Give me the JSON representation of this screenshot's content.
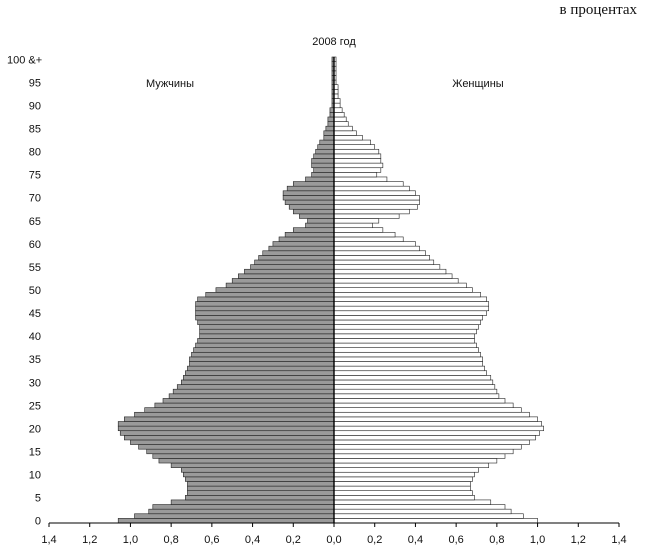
{
  "unit_note": "в процентах",
  "chart_data": {
    "type": "bar",
    "orientation": "horizontal",
    "layout": "population-pyramid",
    "title": "2008 год",
    "xlabel": "",
    "ylabel": "",
    "xlim": [
      -1.4,
      1.4
    ],
    "ylim": [
      0,
      100
    ],
    "x_ticks": [
      "1,4",
      "1,2",
      "1,0",
      "0,8",
      "0,6",
      "0,4",
      "0,2",
      "0,0",
      "0,2",
      "0,4",
      "0,6",
      "0,8",
      "1,0",
      "1,2",
      "1,4"
    ],
    "y_ticks": [
      "0",
      "5",
      "10",
      "15",
      "20",
      "25",
      "30",
      "35",
      "40",
      "45",
      "50",
      "55",
      "60",
      "65",
      "70",
      "75",
      "80",
      "85",
      "90",
      "95",
      "100 &+"
    ],
    "grid": false,
    "legend": "none",
    "colors": {
      "male": "#9a9a9a",
      "female": "#ffffff",
      "outline": "#222222"
    },
    "ages": [
      0,
      1,
      2,
      3,
      4,
      5,
      6,
      7,
      8,
      9,
      10,
      11,
      12,
      13,
      14,
      15,
      16,
      17,
      18,
      19,
      20,
      21,
      22,
      23,
      24,
      25,
      26,
      27,
      28,
      29,
      30,
      31,
      32,
      33,
      34,
      35,
      36,
      37,
      38,
      39,
      40,
      41,
      42,
      43,
      44,
      45,
      46,
      47,
      48,
      49,
      50,
      51,
      52,
      53,
      54,
      55,
      56,
      57,
      58,
      59,
      60,
      61,
      62,
      63,
      64,
      65,
      66,
      67,
      68,
      69,
      70,
      71,
      72,
      73,
      74,
      75,
      76,
      77,
      78,
      79,
      80,
      81,
      82,
      83,
      84,
      85,
      86,
      87,
      88,
      89,
      90,
      91,
      92,
      93,
      94,
      95,
      96,
      97,
      98,
      99,
      100
    ],
    "series": [
      {
        "name": "Мужчины",
        "values": [
          1.06,
          0.98,
          0.91,
          0.89,
          0.8,
          0.73,
          0.72,
          0.72,
          0.72,
          0.73,
          0.74,
          0.75,
          0.8,
          0.86,
          0.89,
          0.92,
          0.96,
          1.0,
          1.03,
          1.05,
          1.06,
          1.06,
          1.03,
          0.98,
          0.93,
          0.88,
          0.84,
          0.81,
          0.79,
          0.77,
          0.75,
          0.74,
          0.73,
          0.72,
          0.71,
          0.71,
          0.7,
          0.69,
          0.68,
          0.67,
          0.66,
          0.66,
          0.66,
          0.67,
          0.68,
          0.68,
          0.68,
          0.68,
          0.67,
          0.63,
          0.58,
          0.53,
          0.5,
          0.47,
          0.44,
          0.41,
          0.39,
          0.37,
          0.35,
          0.32,
          0.3,
          0.27,
          0.24,
          0.2,
          0.14,
          0.13,
          0.17,
          0.2,
          0.22,
          0.24,
          0.25,
          0.25,
          0.23,
          0.2,
          0.14,
          0.11,
          0.1,
          0.11,
          0.11,
          0.1,
          0.09,
          0.08,
          0.07,
          0.05,
          0.05,
          0.04,
          0.03,
          0.03,
          0.02,
          0.02,
          0.01,
          0.01,
          0.01,
          0.01,
          0.01,
          0.01,
          0.01,
          0.01,
          0.01,
          0.01,
          0.01
        ]
      },
      {
        "name": "Женщины",
        "values": [
          1.0,
          0.93,
          0.87,
          0.84,
          0.77,
          0.69,
          0.68,
          0.67,
          0.67,
          0.68,
          0.69,
          0.71,
          0.76,
          0.8,
          0.84,
          0.88,
          0.92,
          0.96,
          0.99,
          1.01,
          1.03,
          1.02,
          1.0,
          0.96,
          0.92,
          0.88,
          0.84,
          0.81,
          0.8,
          0.79,
          0.78,
          0.77,
          0.75,
          0.74,
          0.73,
          0.73,
          0.72,
          0.71,
          0.7,
          0.69,
          0.69,
          0.7,
          0.71,
          0.72,
          0.73,
          0.75,
          0.76,
          0.76,
          0.75,
          0.72,
          0.68,
          0.65,
          0.61,
          0.58,
          0.55,
          0.52,
          0.49,
          0.47,
          0.45,
          0.42,
          0.4,
          0.34,
          0.3,
          0.24,
          0.19,
          0.22,
          0.32,
          0.37,
          0.41,
          0.42,
          0.42,
          0.4,
          0.37,
          0.34,
          0.26,
          0.21,
          0.23,
          0.24,
          0.23,
          0.23,
          0.22,
          0.2,
          0.18,
          0.14,
          0.11,
          0.09,
          0.07,
          0.06,
          0.05,
          0.04,
          0.03,
          0.03,
          0.02,
          0.02,
          0.02,
          0.01,
          0.01,
          0.01,
          0.01,
          0.01,
          0.01
        ]
      }
    ]
  }
}
